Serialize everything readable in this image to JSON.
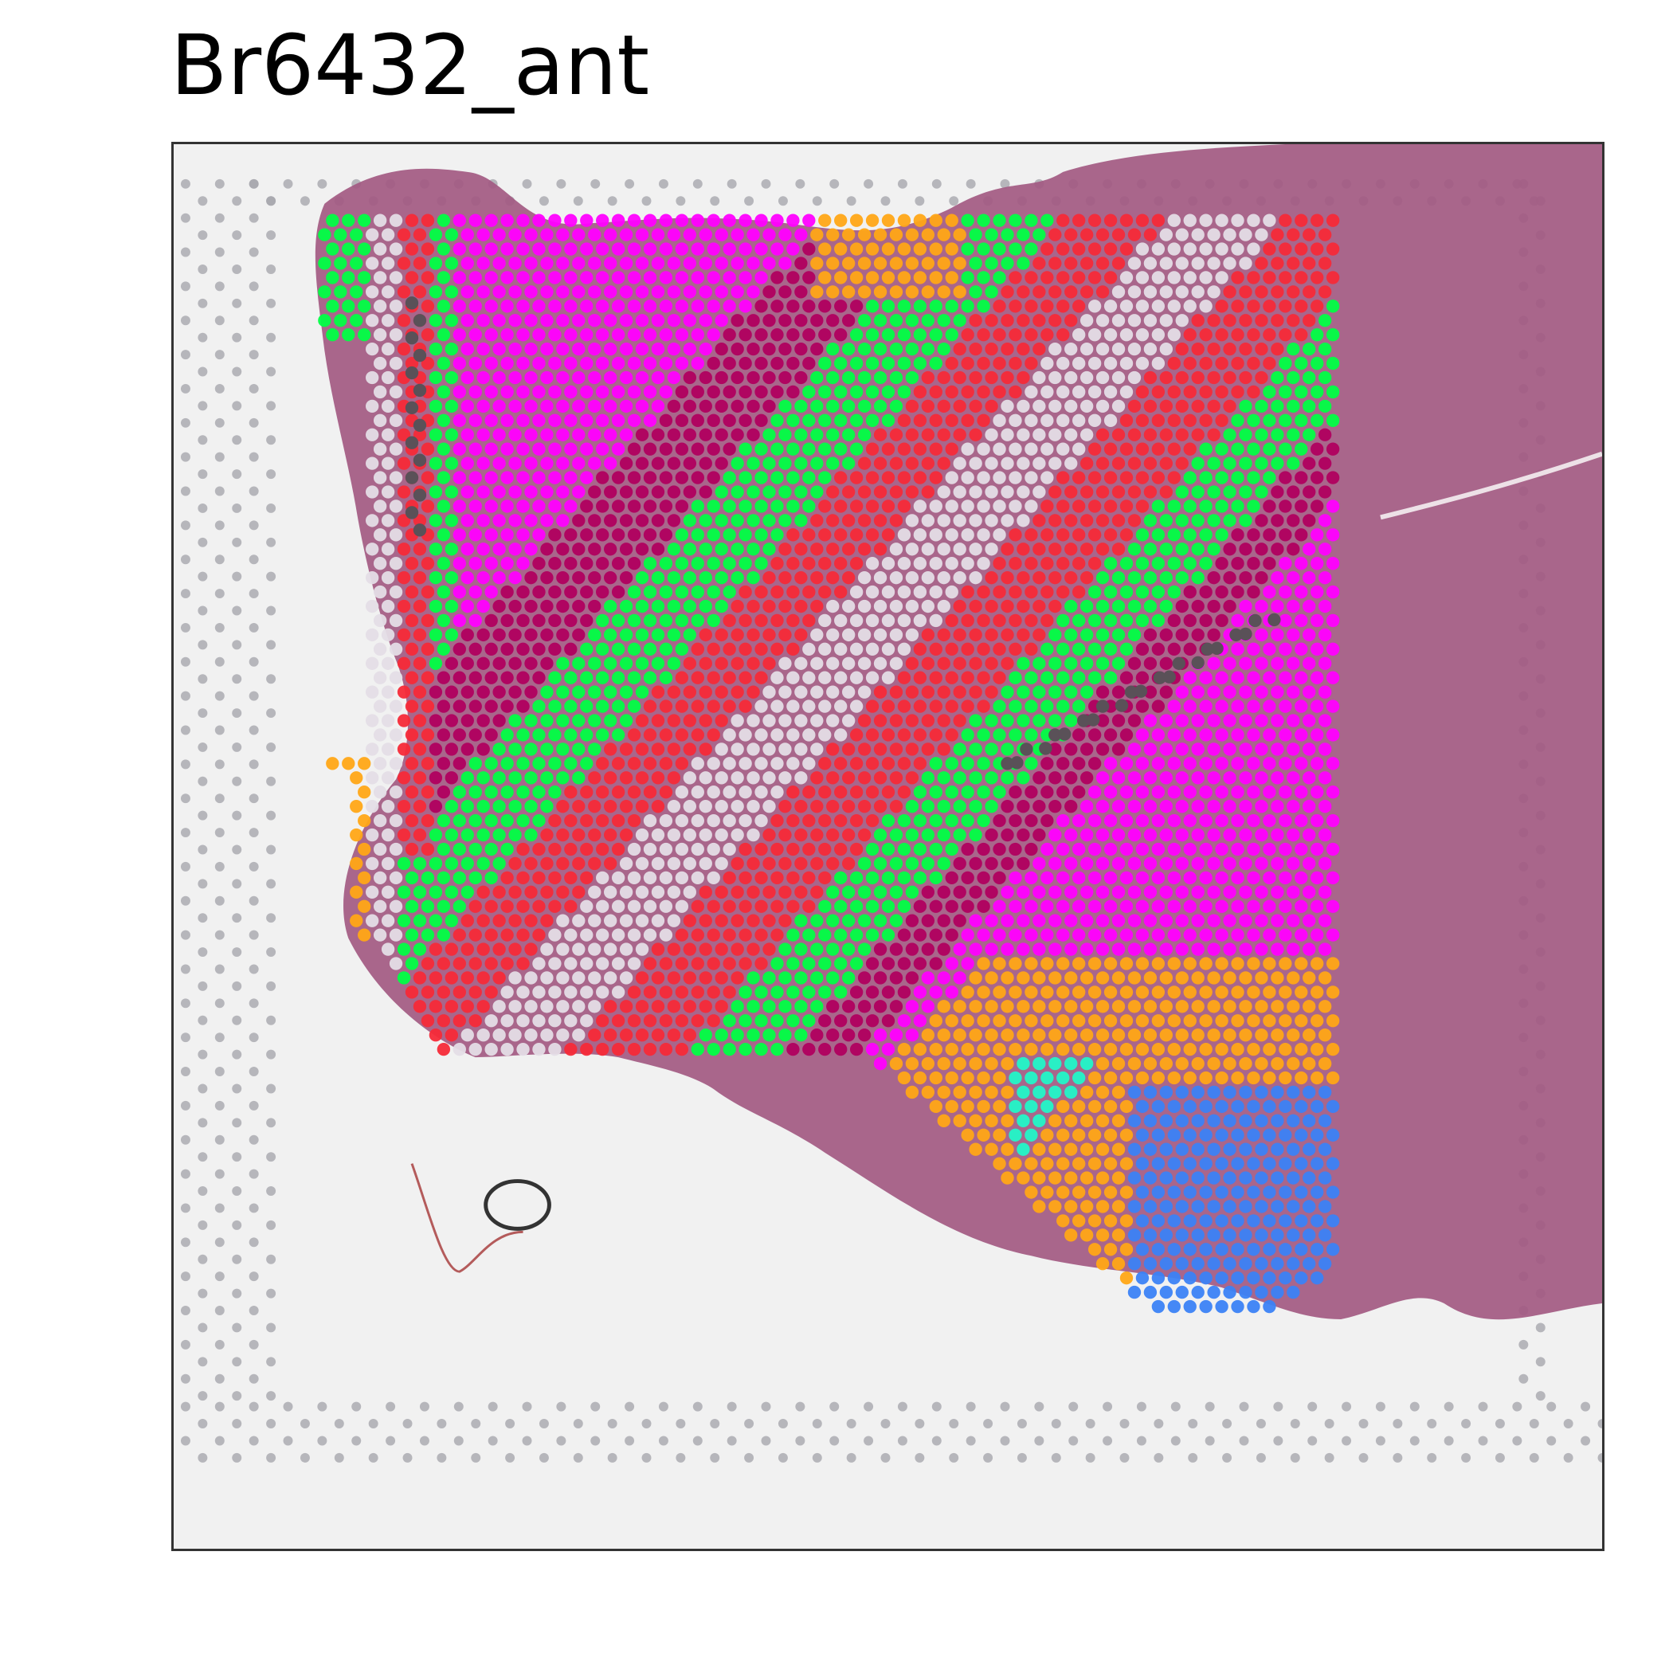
{
  "title": "Br6432_ant",
  "colors": {
    "magenta": "#ff00ff",
    "plum": "#b0005f",
    "green": "#00ff44",
    "red": "#f52a38",
    "pale": "#e4dde6",
    "gray": "#5a5158",
    "orange": "#ffa716",
    "blue": "#3b82f6",
    "cyan": "#22f7c8",
    "tissue": "#a35a82",
    "fiducial": "#a7a7ae",
    "background": "#f1f1f1",
    "frame": "#333333"
  }
}
